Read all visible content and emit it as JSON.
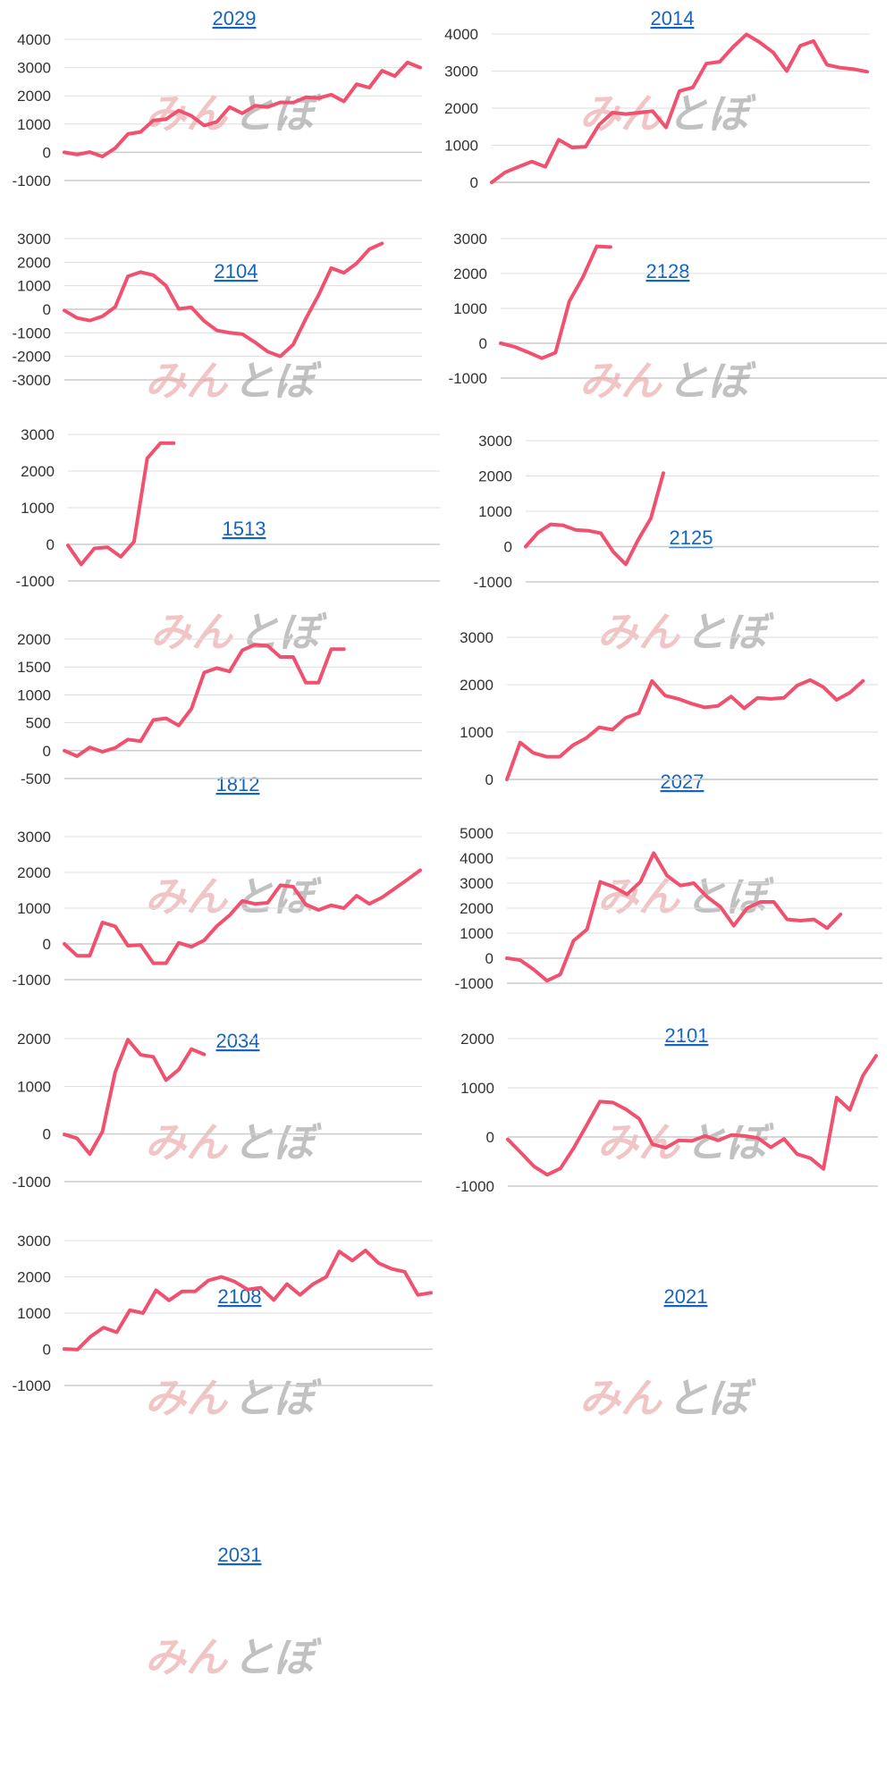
{
  "colors": {
    "line": "#f0516e",
    "title": "#1565c0",
    "grid": "#dddddd",
    "watermark_red": "#e8a0a0",
    "watermark_gray": "#999999"
  },
  "watermark": {
    "part1": "みん",
    "part2": "とぼ"
  },
  "chart_data": [
    {
      "type": "line",
      "title": "2029",
      "yticks": [
        "4000",
        "3000",
        "2000",
        "1000",
        "0",
        "-1000"
      ],
      "ylim": [
        -1000,
        4000
      ],
      "xlabel": "",
      "ylabel": "",
      "values": [
        0,
        -80,
        10,
        -150,
        150,
        650,
        720,
        1130,
        1170,
        1480,
        1290,
        950,
        1080,
        1600,
        1380,
        1650,
        1600,
        1770,
        1760,
        1950,
        1920,
        2040,
        1800,
        2410,
        2290,
        2890,
        2700,
        3180,
        3000
      ]
    },
    {
      "type": "line",
      "title": "2014",
      "yticks": [
        "4000",
        "3000",
        "2000",
        "1000",
        "0"
      ],
      "ylim": [
        0,
        4000
      ],
      "xlabel": "",
      "ylabel": "",
      "values": [
        0,
        270,
        420,
        560,
        420,
        1150,
        940,
        960,
        1550,
        1880,
        1840,
        1880,
        1920,
        1480,
        2460,
        2560,
        3200,
        3250,
        3650,
        3990,
        3770,
        3500,
        3000,
        3680,
        3810,
        3170,
        3090,
        3050,
        2980
      ]
    },
    {
      "type": "line",
      "title": "2104",
      "yticks": [
        "3000",
        "2000",
        "1000",
        "0",
        "-1000",
        "-2000",
        "-3000"
      ],
      "ylim": [
        -3000,
        3000
      ],
      "xlabel": "",
      "ylabel": "",
      "values": [
        -50,
        -370,
        -480,
        -300,
        100,
        1400,
        1580,
        1450,
        1000,
        20,
        80,
        -500,
        -900,
        -1000,
        -1050,
        -1400,
        -1800,
        -2000,
        -1500,
        -400,
        600,
        1750,
        1550,
        1950,
        2550,
        2800
      ]
    },
    {
      "type": "line",
      "title": "2128",
      "yticks": [
        "3000",
        "2000",
        "1000",
        "0",
        "-1000"
      ],
      "ylim": [
        -1000,
        3000
      ],
      "xlabel": "",
      "ylabel": "",
      "values": [
        0,
        -100,
        -260,
        -430,
        -270,
        1200,
        1900,
        2780,
        2760
      ]
    },
    {
      "type": "line",
      "title": "1513",
      "yticks": [
        "3000",
        "2000",
        "1000",
        "0",
        "-1000"
      ],
      "ylim": [
        -1000,
        3000
      ],
      "xlabel": "",
      "ylabel": "",
      "values": [
        -30,
        -550,
        -110,
        -80,
        -340,
        70,
        2350,
        2760,
        2760
      ]
    },
    {
      "type": "line",
      "title": "2125",
      "yticks": [
        "3000",
        "2000",
        "1000",
        "0",
        "-1000"
      ],
      "ylim": [
        -1000,
        3000
      ],
      "xlabel": "",
      "ylabel": "",
      "values": [
        0,
        400,
        630,
        600,
        470,
        450,
        380,
        -150,
        -500,
        200,
        800,
        2080
      ]
    },
    {
      "type": "line",
      "title": "1812",
      "yticks": [
        "2000",
        "1500",
        "1000",
        "500",
        "0",
        "-500"
      ],
      "ylim": [
        -500,
        2000
      ],
      "xlabel": "",
      "ylabel": "",
      "values": [
        0,
        -100,
        60,
        -20,
        50,
        200,
        170,
        550,
        580,
        450,
        750,
        1400,
        1480,
        1420,
        1800,
        1900,
        1880,
        1680,
        1680,
        1220,
        1220,
        1820,
        1820
      ]
    },
    {
      "type": "line",
      "title": "2027",
      "yticks": [
        "3000",
        "2000",
        "1000",
        "0"
      ],
      "ylim": [
        0,
        3000
      ],
      "xlabel": "",
      "ylabel": "",
      "values": [
        0,
        780,
        560,
        480,
        480,
        720,
        870,
        1100,
        1050,
        1300,
        1400,
        2080,
        1770,
        1700,
        1600,
        1520,
        1550,
        1750,
        1500,
        1720,
        1700,
        1720,
        1980,
        2100,
        1950,
        1680,
        1830,
        2080
      ]
    },
    {
      "type": "line",
      "title": "2034",
      "yticks": [
        "3000",
        "2000",
        "1000",
        "0",
        "-1000"
      ],
      "ylim": [
        -1000,
        3000
      ],
      "xlabel": "",
      "ylabel": "",
      "values": [
        0,
        -330,
        -330,
        600,
        490,
        -50,
        -30,
        -540,
        -540,
        30,
        -80,
        100,
        500,
        800,
        1200,
        1120,
        1150,
        1640,
        1600,
        1100,
        950,
        1080,
        1000,
        1350,
        1120,
        1300,
        1550,
        1800,
        2060
      ]
    },
    {
      "type": "line",
      "title": "2101",
      "yticks": [
        "5000",
        "4000",
        "3000",
        "2000",
        "1000",
        "0",
        "-1000"
      ],
      "ylim": [
        -1000,
        5000
      ],
      "xlabel": "",
      "ylabel": "",
      "values": [
        0,
        -80,
        -450,
        -900,
        -650,
        700,
        1150,
        3050,
        2850,
        2550,
        3050,
        4200,
        3300,
        2900,
        3000,
        2450,
        2050,
        1300,
        2000,
        2250,
        2250,
        1550,
        1500,
        1550,
        1200,
        1750
      ]
    },
    {
      "type": "line",
      "title": "2108",
      "yticks": [
        "2000",
        "1000",
        "0",
        "-1000"
      ],
      "ylim": [
        -1000,
        2000
      ],
      "xlabel": "",
      "ylabel": "",
      "values": [
        -10,
        -90,
        -420,
        50,
        1300,
        1980,
        1660,
        1620,
        1130,
        1350,
        1780,
        1670
      ]
    },
    {
      "type": "line",
      "title": "2021",
      "yticks": [
        "2000",
        "1000",
        "0",
        "-1000"
      ],
      "ylim": [
        -1000,
        2000
      ],
      "xlabel": "",
      "ylabel": "",
      "values": [
        -50,
        -320,
        -600,
        -770,
        -640,
        -230,
        240,
        720,
        700,
        560,
        370,
        -150,
        -220,
        -70,
        -80,
        20,
        -70,
        40,
        20,
        -20,
        -210,
        -40,
        -350,
        -430,
        -650,
        800,
        550,
        1250,
        1650
      ]
    },
    {
      "type": "line",
      "title": "2031",
      "yticks": [
        "3000",
        "2000",
        "1000",
        "0",
        "-1000"
      ],
      "ylim": [
        -1000,
        3000
      ],
      "xlabel": "",
      "ylabel": "",
      "values": [
        10,
        -10,
        350,
        600,
        470,
        1080,
        1000,
        1630,
        1350,
        1600,
        1600,
        1900,
        2000,
        1870,
        1650,
        1700,
        1360,
        1800,
        1500,
        1800,
        2000,
        2700,
        2450,
        2730,
        2380,
        2220,
        2140,
        1500,
        1560
      ]
    }
  ]
}
